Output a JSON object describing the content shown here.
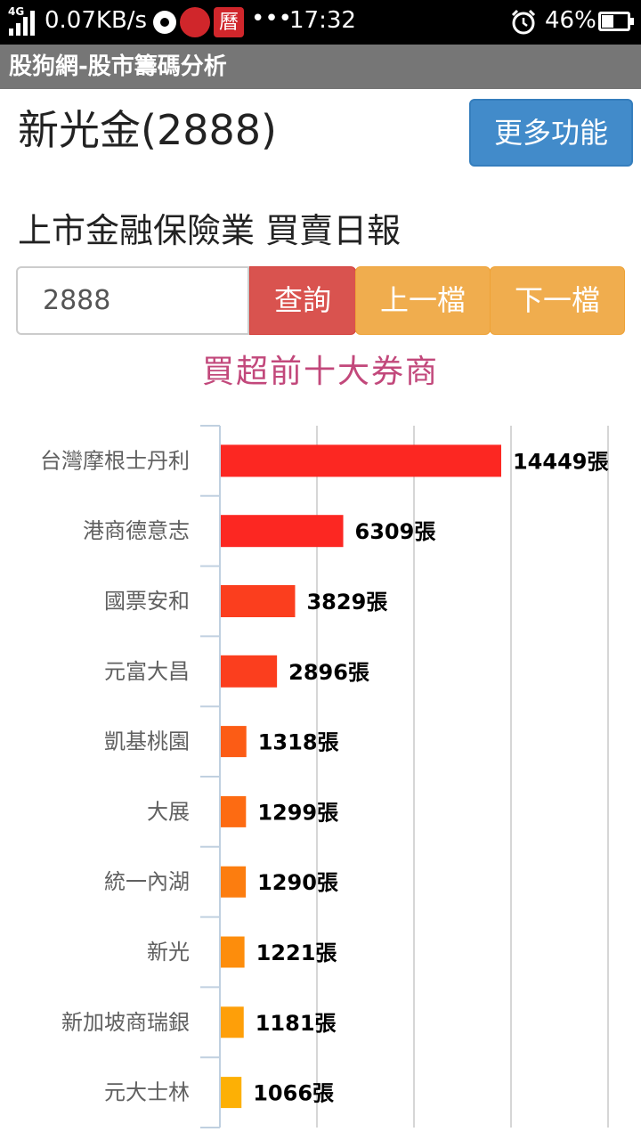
{
  "status_bar": {
    "network": "4G",
    "speed": "0.07KB/s",
    "calendar_icon_text": "曆",
    "more_dots": "•••",
    "time": "17:32",
    "battery": "46%"
  },
  "app_bar": {
    "title": "股狗網-股市籌碼分析"
  },
  "stock": {
    "title": "新光金(2888)"
  },
  "more_button": {
    "label": "更多功能"
  },
  "report": {
    "title": "上市金融保險業 買賣日報"
  },
  "query": {
    "value": "2888",
    "query_label": "查詢",
    "prev_label": "上一檔",
    "next_label": "下一檔"
  },
  "chart_data": {
    "type": "bar",
    "orientation": "horizontal",
    "title": "買超前十大券商",
    "categories": [
      "台灣摩根士丹利",
      "港商德意志",
      "國票安和",
      "元富大昌",
      "凱基桃園",
      "大展",
      "統一內湖",
      "新光",
      "新加坡商瑞銀",
      "元大士林"
    ],
    "values": [
      14449,
      6309,
      3829,
      2896,
      1318,
      1299,
      1290,
      1221,
      1181,
      1066
    ],
    "value_suffix": "張",
    "xlim": [
      0,
      20000
    ],
    "grid": true,
    "colors": [
      "#fc2722",
      "#fc2722",
      "#fb3e1e",
      "#fb3e1e",
      "#fc5c15",
      "#fd6b12",
      "#fc7d0f",
      "#fd8d0c",
      "#fe9f09",
      "#fdb005"
    ]
  }
}
